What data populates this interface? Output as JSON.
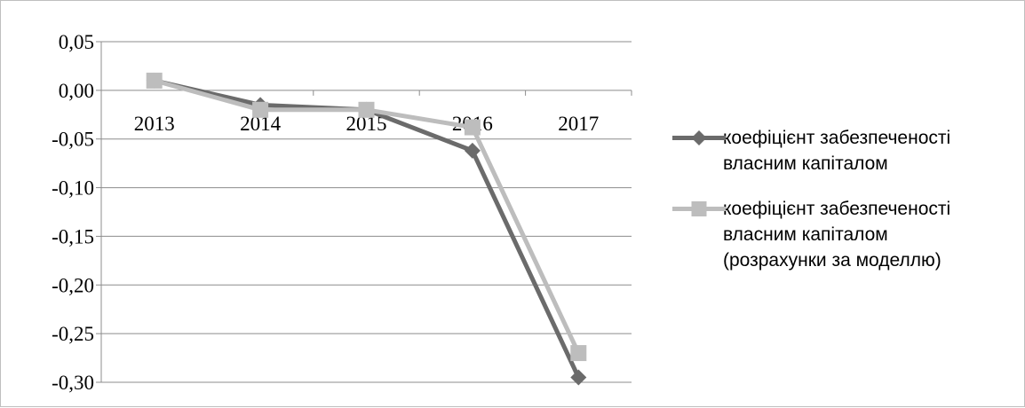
{
  "chart_data": {
    "type": "line",
    "title": "",
    "xlabel": "",
    "ylabel": "",
    "categories": [
      "2013",
      "2014",
      "2015",
      "2016",
      "2017"
    ],
    "ylim": [
      -0.3,
      0.05
    ],
    "ytick_step": 0.05,
    "yticks": [
      "0,05",
      "0,00",
      "-0,05",
      "-0,10",
      "-0,15",
      "-0,20",
      "-0,25",
      "-0,30"
    ],
    "grid": "horizontal",
    "legend_position": "right",
    "series": [
      {
        "name": "коефіцієнт забезпеченості власним капіталом",
        "values": [
          0.01,
          -0.015,
          -0.02,
          -0.062,
          -0.295
        ],
        "color": "#6b6b6b",
        "marker": "diamond"
      },
      {
        "name": "коефіцієнт забезпеченості власним капіталом (розрахунки за моделлю)",
        "values": [
          0.01,
          -0.02,
          -0.02,
          -0.038,
          -0.27
        ],
        "color": "#bdbdbd",
        "marker": "square"
      }
    ]
  }
}
